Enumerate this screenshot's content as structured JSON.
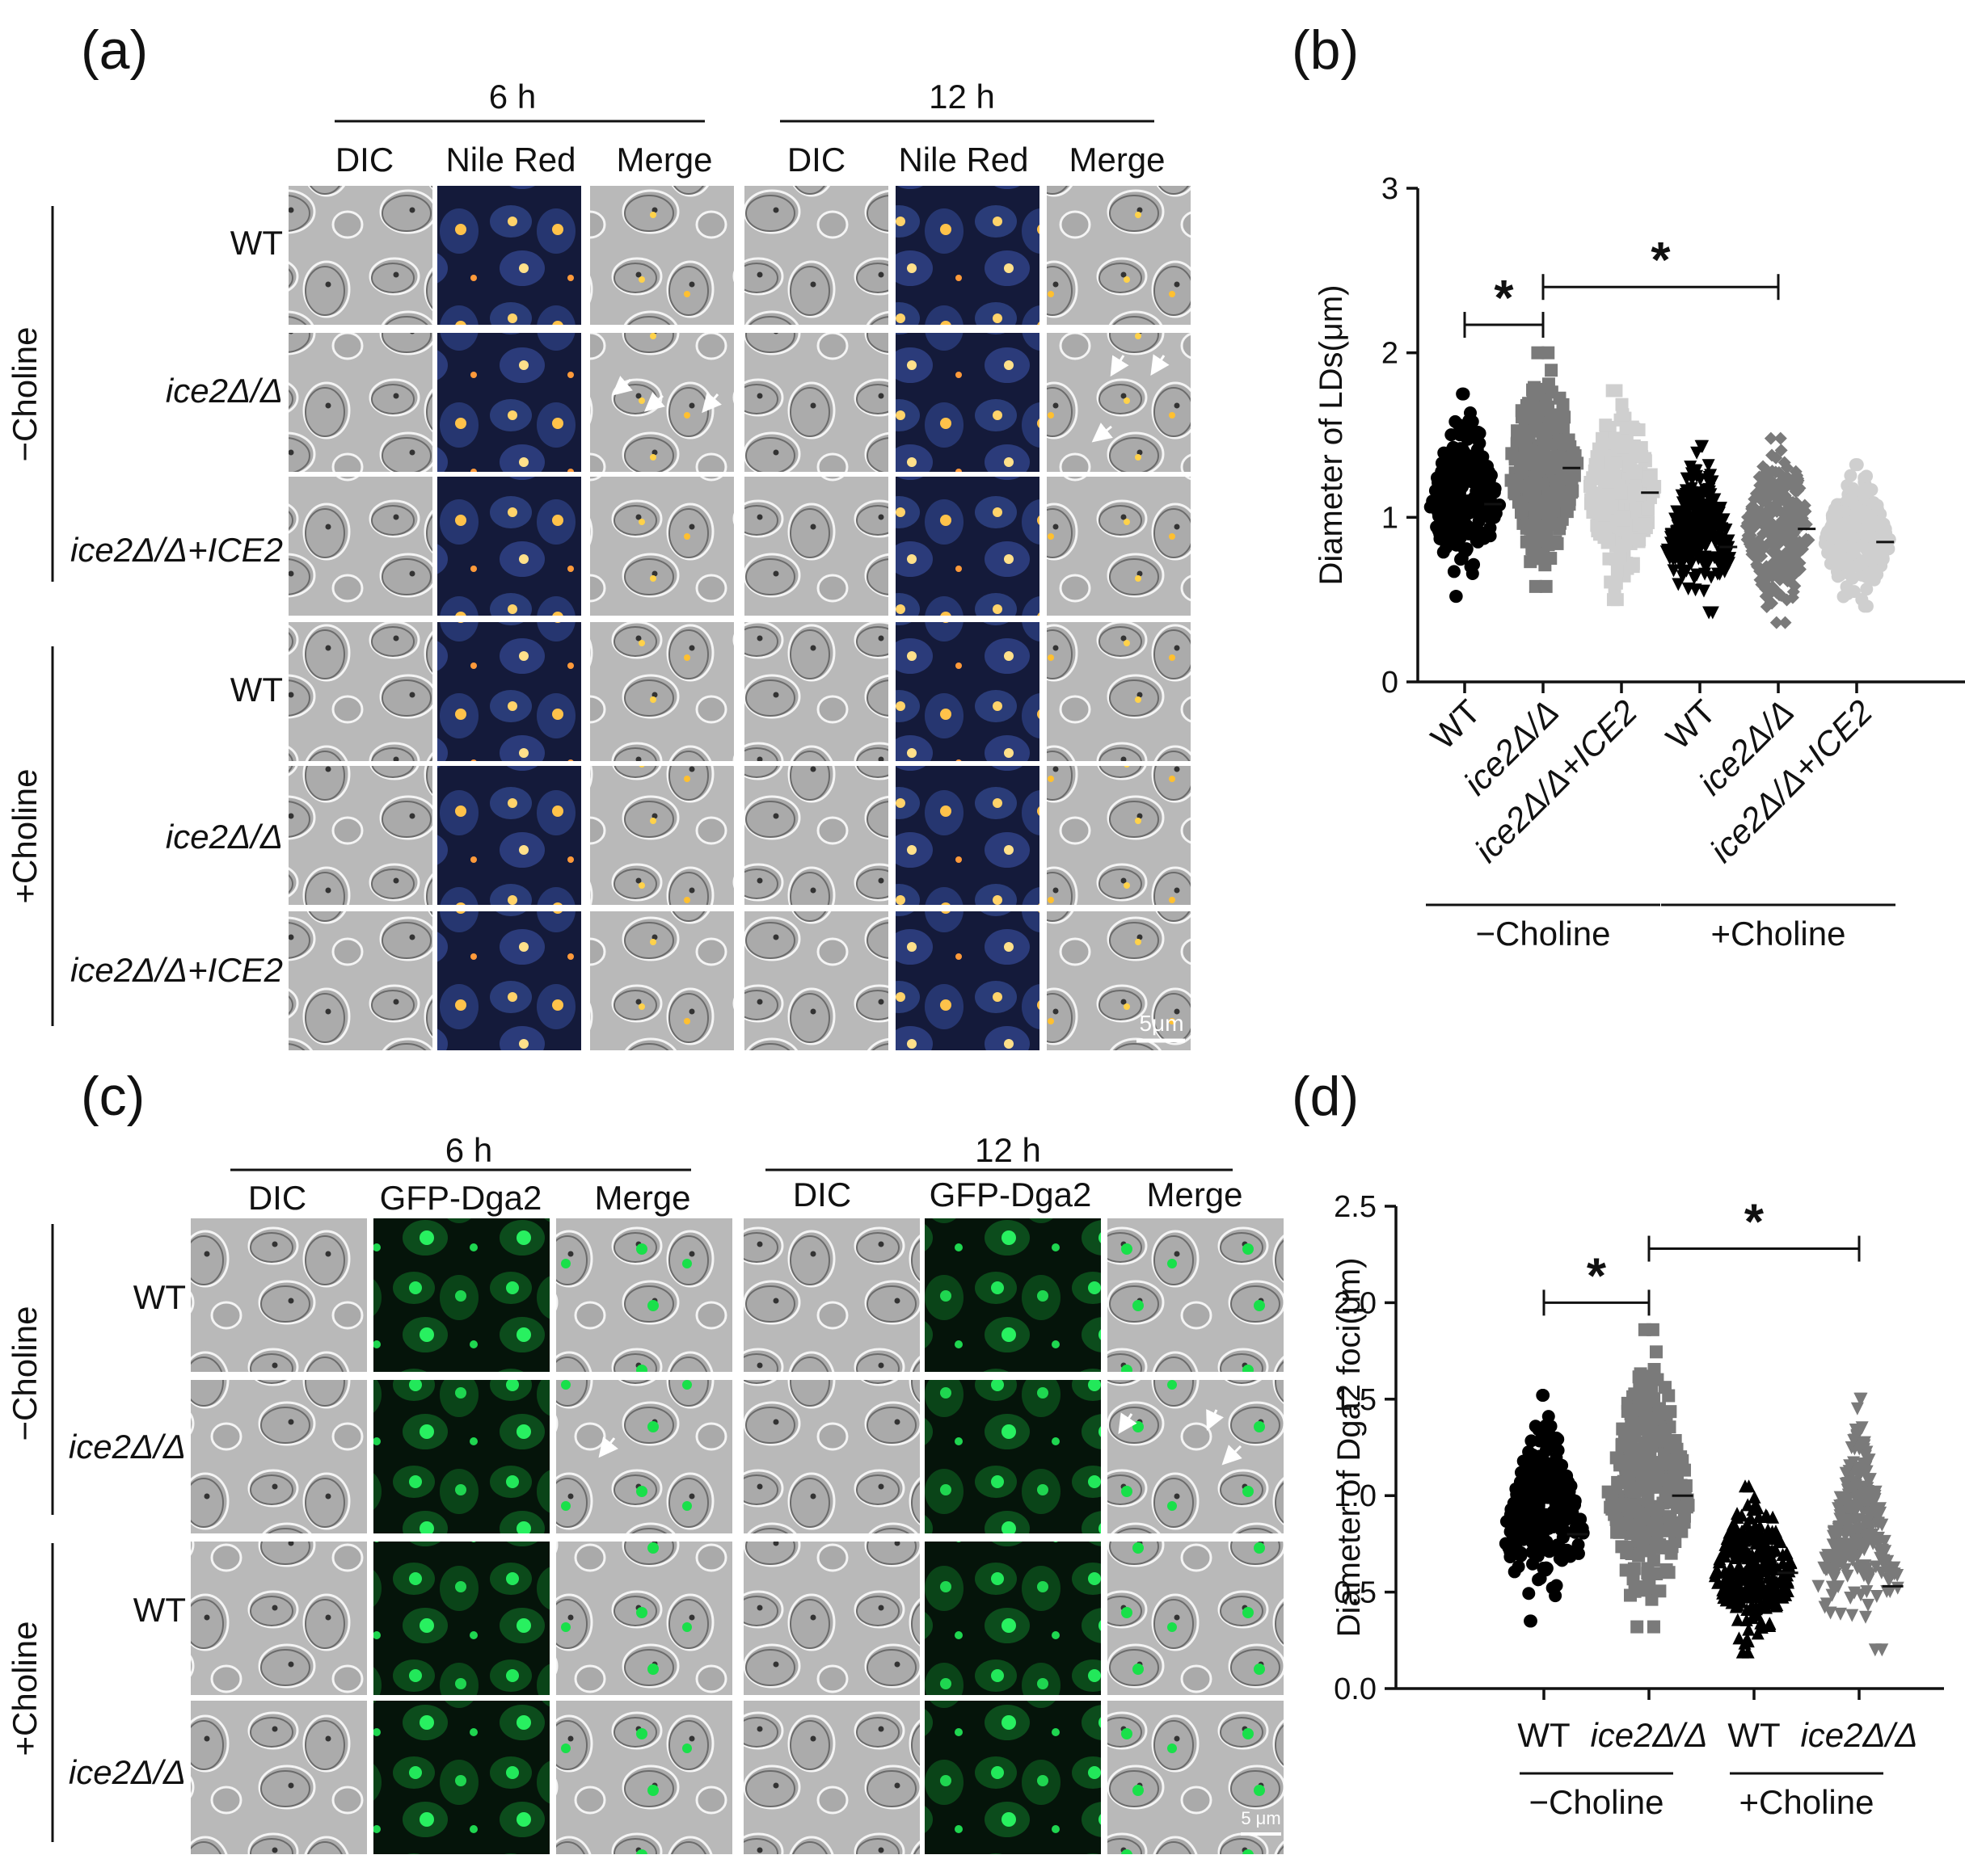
{
  "panels": {
    "a": {
      "letter": "(a)",
      "time_headers": [
        "6 h",
        "12 h"
      ],
      "channels": [
        "DIC",
        "Nile Red",
        "Merge"
      ],
      "conditions": [
        "−Choline",
        "+Choline"
      ],
      "rows": [
        "WT",
        "ice2Δ/Δ",
        "ice2Δ/Δ+ICE2",
        "WT",
        "ice2Δ/Δ",
        "ice2Δ/Δ+ICE2"
      ],
      "scale_bar": "5μm"
    },
    "c": {
      "letter": "(c)",
      "time_headers": [
        "6 h",
        "12 h"
      ],
      "channels": [
        "DIC",
        "GFP-Dga2",
        "Merge"
      ],
      "conditions": [
        "−Choline",
        "+Choline"
      ],
      "rows": [
        "WT",
        "ice2Δ/Δ",
        "WT",
        "ice2Δ/Δ"
      ],
      "scale_bar": "5 μm"
    }
  },
  "chart_data": [
    {
      "panel": "(b)",
      "type": "scatter",
      "ylabel": "Diameter of LDs(μm)",
      "ylim": [
        0,
        3
      ],
      "yticks": [
        "0",
        "1",
        "2",
        "3"
      ],
      "categories": [
        "WT",
        "ice2Δ/Δ",
        "ice2Δ/Δ+ICE2",
        "WT",
        "ice2Δ/Δ",
        "ice2Δ/Δ+ICE2"
      ],
      "groups": [
        "−Choline",
        "+Choline"
      ],
      "colors": [
        "#000000",
        "#7a7a7a",
        "#cfcfcf",
        "#000000",
        "#7a7a7a",
        "#cfcfcf"
      ],
      "markers": [
        "circle",
        "square",
        "square",
        "triangle-down",
        "diamond",
        "circle"
      ],
      "ranges": [
        [
          0.52,
          1.75
        ],
        [
          0.58,
          2.0
        ],
        [
          0.5,
          1.77
        ],
        [
          0.42,
          1.43
        ],
        [
          0.36,
          1.48
        ],
        [
          0.46,
          1.32
        ]
      ],
      "means": [
        1.08,
        1.3,
        1.15,
        0.82,
        0.93,
        0.85
      ],
      "significance": [
        {
          "from": 0,
          "to": 1,
          "y": 2.17,
          "label": "*"
        },
        {
          "from": 1,
          "to": 4,
          "y": 2.4,
          "label": "*"
        }
      ]
    },
    {
      "panel": "(d)",
      "type": "scatter",
      "ylabel": "Diameter of Dga2 foci(μm)",
      "ylim": [
        0,
        2.5
      ],
      "yticks": [
        "0.0",
        "0.5",
        "1.0",
        "1.5",
        "2.0",
        "2.5"
      ],
      "categories": [
        "WT",
        "ice2Δ/Δ",
        "WT",
        "ice2Δ/Δ"
      ],
      "groups": [
        "−Choline",
        "+Choline"
      ],
      "colors": [
        "#000000",
        "#7a7a7a",
        "#000000",
        "#7a7a7a"
      ],
      "markers": [
        "circle",
        "square",
        "triangle-up",
        "triangle-down"
      ],
      "ranges": [
        [
          0.35,
          1.52
        ],
        [
          0.32,
          1.86
        ],
        [
          0.19,
          1.05
        ],
        [
          0.2,
          1.5
        ]
      ],
      "means": [
        0.8,
        1.0,
        0.6,
        0.53
      ],
      "significance": [
        {
          "from": 0,
          "to": 1,
          "y": 2.0,
          "label": "*"
        },
        {
          "from": 1,
          "to": 3,
          "y": 2.28,
          "label": "*"
        }
      ]
    }
  ]
}
